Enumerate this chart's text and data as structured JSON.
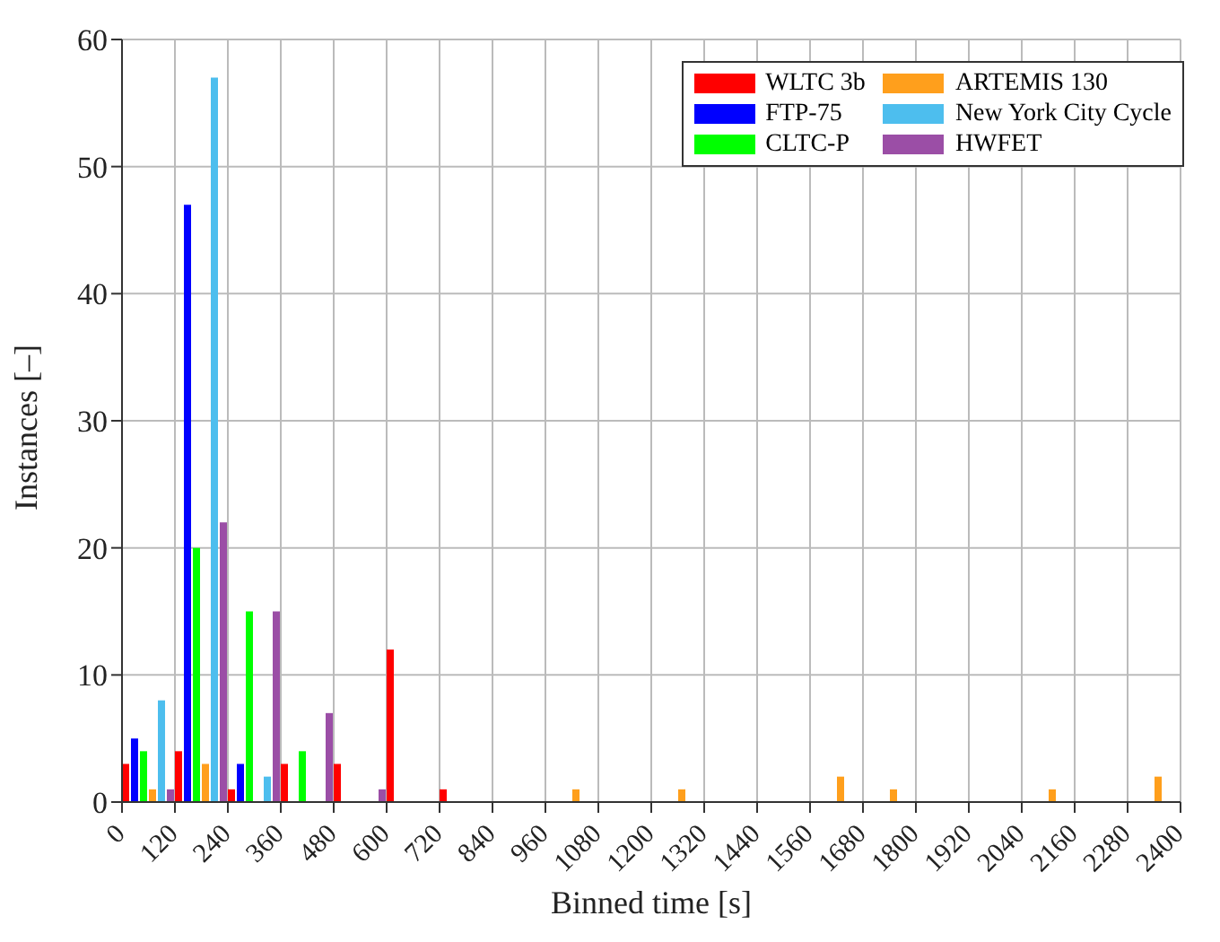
{
  "chart_data": {
    "type": "bar",
    "xlabel": "Binned time [s]",
    "ylabel": "Instances [–]",
    "x": [
      60,
      180,
      300,
      420,
      540,
      660,
      780,
      900,
      1020,
      1140,
      1260,
      1380,
      1500,
      1620,
      1740,
      1860,
      1980,
      2100,
      2220,
      2340
    ],
    "series": [
      {
        "name": "WLTC 3b",
        "color": "#ff0000",
        "values": [
          3,
          4,
          1,
          3,
          3,
          12,
          1,
          0,
          0,
          0,
          0,
          0,
          0,
          0,
          0,
          0,
          0,
          0,
          0,
          0
        ]
      },
      {
        "name": "FTP-75",
        "color": "#0000ff",
        "values": [
          5,
          47,
          3,
          0,
          0,
          0,
          0,
          0,
          0,
          0,
          0,
          0,
          0,
          0,
          0,
          0,
          0,
          0,
          0,
          0
        ]
      },
      {
        "name": "CLTC-P",
        "color": "#00ff00",
        "values": [
          4,
          20,
          15,
          4,
          0,
          0,
          0,
          0,
          0,
          0,
          0,
          0,
          0,
          0,
          0,
          0,
          0,
          0,
          0,
          0
        ]
      },
      {
        "name": "ARTEMIS 130",
        "color": "#ff9f1c",
        "values": [
          1,
          3,
          0,
          0,
          0,
          0,
          0,
          0,
          1,
          0,
          1,
          0,
          0,
          2,
          1,
          0,
          0,
          1,
          0,
          2
        ]
      },
      {
        "name": "New York City Cycle",
        "color": "#4dbeee",
        "values": [
          8,
          57,
          2,
          0,
          0,
          0,
          0,
          0,
          0,
          0,
          0,
          0,
          0,
          0,
          0,
          0,
          0,
          0,
          0,
          0
        ]
      },
      {
        "name": "HWFET",
        "color": "#9b4ea6",
        "values": [
          1,
          22,
          15,
          7,
          1,
          0,
          0,
          0,
          0,
          0,
          0,
          0,
          0,
          0,
          0,
          0,
          0,
          0,
          0,
          0
        ]
      }
    ],
    "xlim": [
      0,
      2400
    ],
    "xticks": [
      0,
      120,
      240,
      360,
      480,
      600,
      720,
      840,
      960,
      1080,
      1200,
      1320,
      1440,
      1560,
      1680,
      1800,
      1920,
      2040,
      2160,
      2280,
      2400
    ],
    "ylim": [
      0,
      60
    ],
    "yticks": [
      0,
      10,
      20,
      30,
      40,
      50,
      60
    ],
    "grid": true,
    "legend": "top right"
  }
}
